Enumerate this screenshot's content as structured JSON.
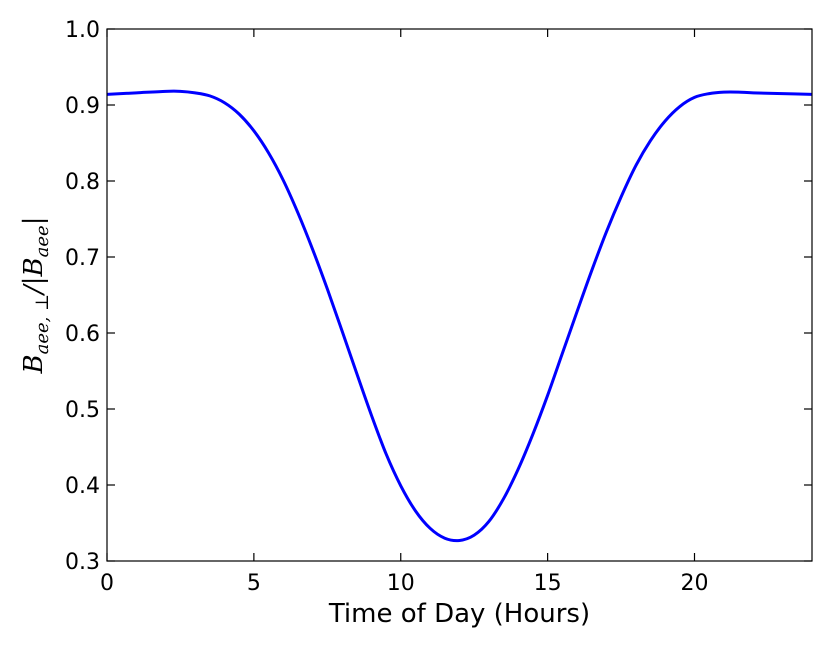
{
  "chart_data": {
    "type": "line",
    "title": "",
    "xlabel": "Time of Day (Hours)",
    "ylabel": "B_{aee,⊥}/|B_{aee}|",
    "ylabel_parts": {
      "main": "B",
      "sub": "aee, ⊥",
      "slash": "/|",
      "main2": "B",
      "sub2": "aee",
      "close": "|"
    },
    "xlim": [
      0,
      24
    ],
    "ylim": [
      0.3,
      1.0
    ],
    "xticks": [
      0,
      5,
      10,
      15,
      20
    ],
    "xtick_labels": [
      "0",
      "5",
      "10",
      "15",
      "20"
    ],
    "yticks": [
      0.3,
      0.4,
      0.5,
      0.6,
      0.7,
      0.8,
      0.9,
      1.0
    ],
    "ytick_labels": [
      "0.3",
      "0.4",
      "0.5",
      "0.6",
      "0.7",
      "0.8",
      "0.9",
      "1.0"
    ],
    "grid": false,
    "series": [
      {
        "color": "#0000ff",
        "x": [
          0,
          1,
          2,
          2.5,
          3,
          3.5,
          4,
          4.5,
          5,
          5.5,
          6,
          6.5,
          7,
          7.5,
          8,
          8.5,
          9,
          9.5,
          10,
          10.5,
          11,
          11.5,
          12,
          12.5,
          13,
          13.5,
          14,
          14.5,
          15,
          15.5,
          16,
          16.5,
          17,
          17.5,
          18,
          18.5,
          19,
          19.5,
          20,
          20.5,
          21,
          21.5,
          22,
          23,
          24
        ],
        "y": [
          0.914,
          0.916,
          0.918,
          0.918,
          0.916,
          0.912,
          0.903,
          0.888,
          0.866,
          0.837,
          0.801,
          0.758,
          0.71,
          0.658,
          0.603,
          0.547,
          0.492,
          0.441,
          0.399,
          0.366,
          0.343,
          0.33,
          0.327,
          0.334,
          0.352,
          0.382,
          0.421,
          0.467,
          0.518,
          0.573,
          0.628,
          0.682,
          0.733,
          0.779,
          0.82,
          0.853,
          0.879,
          0.898,
          0.91,
          0.915,
          0.917,
          0.917,
          0.916,
          0.915,
          0.914
        ]
      }
    ]
  }
}
